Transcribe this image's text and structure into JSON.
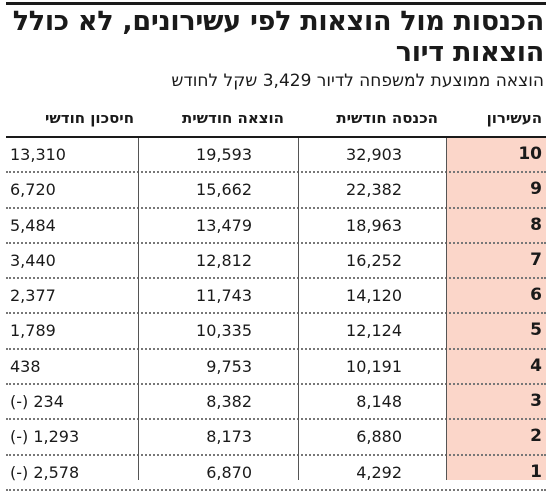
{
  "chart_data": {
    "type": "table",
    "title": "הכנסות מול הוצאות לפי עשירונים, לא כולל הוצאות דיור",
    "subtitle": "הוצאה ממוצעת למשפחה לדיור 3,429 שקל לחודש",
    "columns": [
      "העשירון",
      "הכנסה חודשית",
      "הוצאה חודשית",
      "חיסכון חודשי"
    ],
    "rows": [
      {
        "decile": "10",
        "income": "32,903",
        "expense": "19,593",
        "savings": "13,310"
      },
      {
        "decile": "9",
        "income": "22,382",
        "expense": "15,662",
        "savings": "6,720"
      },
      {
        "decile": "8",
        "income": "18,963",
        "expense": "13,479",
        "savings": "5,484"
      },
      {
        "decile": "7",
        "income": "16,252",
        "expense": "12,812",
        "savings": "3,440"
      },
      {
        "decile": "6",
        "income": "14,120",
        "expense": "11,743",
        "savings": "2,377"
      },
      {
        "decile": "5",
        "income": "12,124",
        "expense": "10,335",
        "savings": "1,789"
      },
      {
        "decile": "4",
        "income": "10,191",
        "expense": "9,753",
        "savings": "438"
      },
      {
        "decile": "3",
        "income": "8,148",
        "expense": "8,382",
        "savings": "(-) 234"
      },
      {
        "decile": "2",
        "income": "6,880",
        "expense": "8,173",
        "savings": "(-) 1,293"
      },
      {
        "decile": "1",
        "income": "4,292",
        "expense": "6,870",
        "savings": "(-) 2,578"
      }
    ],
    "colors": {
      "decile_highlight": "#fbd6c9",
      "text": "#1a1a1a"
    }
  }
}
